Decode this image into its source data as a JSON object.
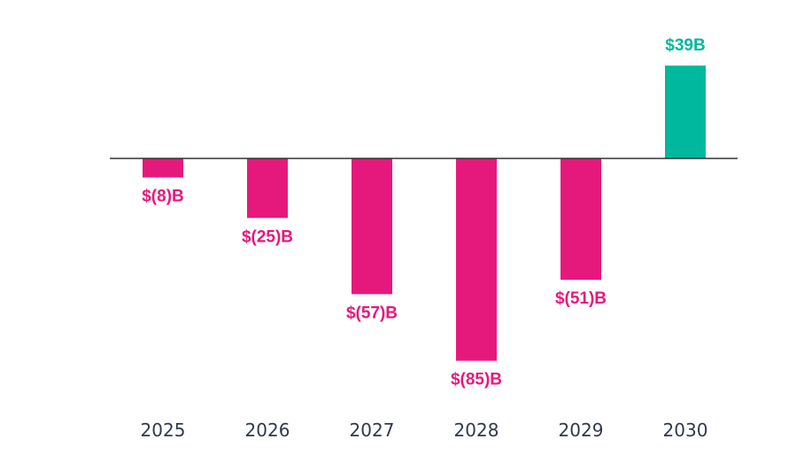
{
  "chart_data": {
    "type": "bar",
    "title": "",
    "xlabel": "",
    "ylabel": "",
    "categories": [
      "2025",
      "2026",
      "2027",
      "2028",
      "2029",
      "2030"
    ],
    "values": [
      -8,
      -25,
      -57,
      -85,
      -51,
      39
    ],
    "value_labels": [
      "$(8)B",
      "$(25)B",
      "$(57)B",
      "$(85)B",
      "$(51)B",
      "$39B"
    ],
    "ylim": [
      -85,
      39
    ],
    "grid": false,
    "colors": {
      "negative": "#e5197c",
      "positive": "#00b89e",
      "axis": "#333333",
      "tick_text": "#2f3a4a"
    }
  }
}
